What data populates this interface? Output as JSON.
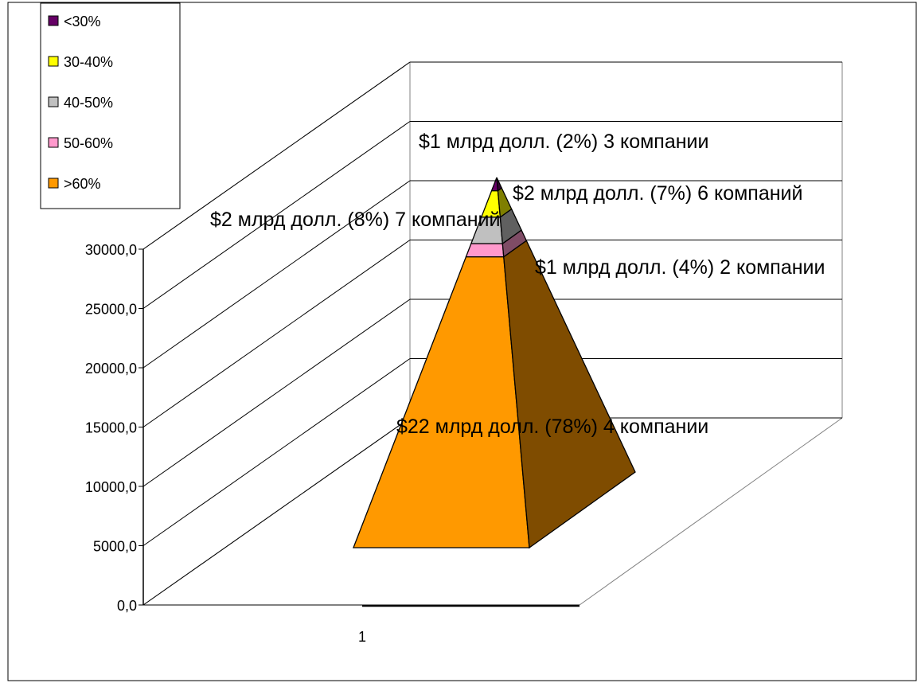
{
  "chart_data": {
    "type": "bar",
    "subtype": "stacked-3d-pyramid",
    "categories": [
      "1"
    ],
    "ylim": [
      0,
      30000
    ],
    "yticks": [
      "0,0",
      "5000,0",
      "10000,0",
      "15000,0",
      "20000,0",
      "25000,0",
      "30000,0"
    ],
    "grid": true,
    "legend_position": "top-left",
    "series": [
      {
        "name": ">60%",
        "value": 22000,
        "color": "#FF9900",
        "shade": "#7F4C00",
        "label": "$22 млрд долл. (78%) 4 компании"
      },
      {
        "name": "50-60%",
        "value": 1000,
        "color": "#FF99CC",
        "shade": "#7F4C66",
        "label": "$1 млрд долл. (4%) 2 компании"
      },
      {
        "name": "40-50%",
        "value": 2000,
        "color": "#C0C0C0",
        "shade": "#606060",
        "label": "$2 млрд долл. (8%) 7 компаний"
      },
      {
        "name": "30-40%",
        "value": 2000,
        "color": "#FFFF00",
        "shade": "#7F7F00",
        "label": "$2 млрд долл. (7%) 6 компаний"
      },
      {
        "name": "<30%",
        "value": 1000,
        "color": "#660066",
        "shade": "#330033",
        "label": "$1 млрд долл. (2%) 3 компании"
      }
    ],
    "legend_order": [
      "<30%",
      "30-40%",
      "40-50%",
      "50-60%",
      ">60%"
    ]
  }
}
